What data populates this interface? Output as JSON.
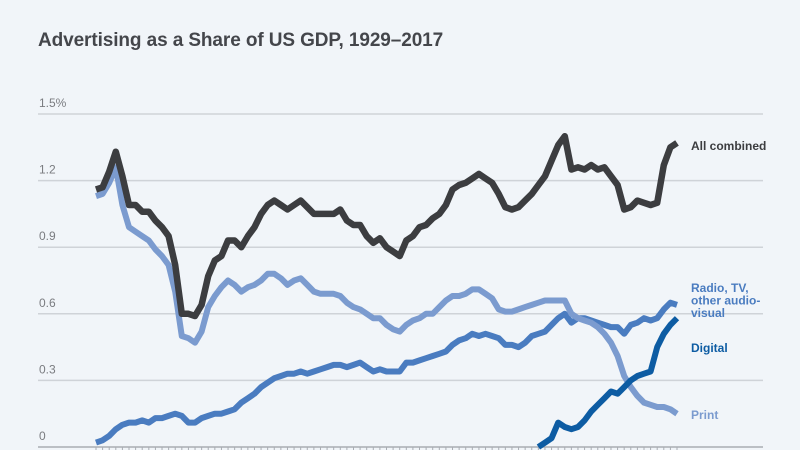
{
  "chart_data": {
    "type": "line",
    "title": "Advertising as a Share of US GDP, 1929–2017",
    "xlabel": "",
    "ylabel": "",
    "xlim": [
      1929,
      2017
    ],
    "ylim": [
      0,
      1.5
    ],
    "yticks": [
      {
        "value": 0,
        "label": "0"
      },
      {
        "value": 0.3,
        "label": "0.3"
      },
      {
        "value": 0.6,
        "label": "0.6"
      },
      {
        "value": 0.9,
        "label": "0.9"
      },
      {
        "value": 1.2,
        "label": "1.2"
      },
      {
        "value": 1.5,
        "label": "1.5%"
      }
    ],
    "grid": true,
    "legend": "direct labels at right end of lines",
    "series": [
      {
        "name": "All combined",
        "label_lines": [
          "All combined"
        ],
        "color": "#3c3d40",
        "start_year": 1929,
        "values": [
          1.16,
          1.17,
          1.24,
          1.33,
          1.22,
          1.09,
          1.09,
          1.06,
          1.06,
          1.02,
          0.99,
          0.95,
          0.82,
          0.6,
          0.6,
          0.59,
          0.64,
          0.77,
          0.84,
          0.86,
          0.93,
          0.93,
          0.9,
          0.95,
          0.99,
          1.05,
          1.09,
          1.11,
          1.09,
          1.07,
          1.09,
          1.11,
          1.08,
          1.05,
          1.05,
          1.05,
          1.05,
          1.07,
          1.02,
          1.0,
          1.0,
          0.95,
          0.92,
          0.94,
          0.9,
          0.88,
          0.86,
          0.93,
          0.95,
          0.99,
          1.0,
          1.03,
          1.05,
          1.09,
          1.16,
          1.18,
          1.19,
          1.21,
          1.23,
          1.21,
          1.19,
          1.14,
          1.08,
          1.07,
          1.08,
          1.11,
          1.14,
          1.18,
          1.22,
          1.29,
          1.36,
          1.4,
          1.25,
          1.26,
          1.25,
          1.27,
          1.25,
          1.26,
          1.22,
          1.18,
          1.07,
          1.08,
          1.11,
          1.1,
          1.09,
          1.1,
          1.27,
          1.35,
          1.37
        ]
      },
      {
        "name": "Print",
        "label_lines": [
          "Print"
        ],
        "color": "#7b9bcf",
        "start_year": 1929,
        "values": [
          1.13,
          1.14,
          1.19,
          1.26,
          1.09,
          0.99,
          0.97,
          0.95,
          0.93,
          0.89,
          0.86,
          0.82,
          0.7,
          0.5,
          0.49,
          0.47,
          0.52,
          0.63,
          0.68,
          0.72,
          0.75,
          0.73,
          0.7,
          0.72,
          0.73,
          0.75,
          0.78,
          0.78,
          0.76,
          0.73,
          0.75,
          0.76,
          0.73,
          0.7,
          0.69,
          0.69,
          0.69,
          0.68,
          0.65,
          0.63,
          0.62,
          0.6,
          0.58,
          0.58,
          0.55,
          0.53,
          0.52,
          0.55,
          0.57,
          0.58,
          0.6,
          0.6,
          0.63,
          0.66,
          0.68,
          0.68,
          0.69,
          0.71,
          0.71,
          0.69,
          0.67,
          0.62,
          0.61,
          0.61,
          0.62,
          0.63,
          0.64,
          0.65,
          0.66,
          0.66,
          0.66,
          0.66,
          0.6,
          0.58,
          0.57,
          0.56,
          0.54,
          0.51,
          0.47,
          0.41,
          0.32,
          0.27,
          0.23,
          0.2,
          0.19,
          0.18,
          0.18,
          0.17,
          0.15
        ]
      },
      {
        "name": "Radio, TV, other audio-visual",
        "label_lines": [
          "Radio, TV,",
          "other audio-",
          "visual"
        ],
        "color": "#4a7cc0",
        "start_year": 1929,
        "values": [
          0.02,
          0.03,
          0.05,
          0.08,
          0.1,
          0.11,
          0.11,
          0.12,
          0.11,
          0.13,
          0.13,
          0.14,
          0.15,
          0.14,
          0.11,
          0.11,
          0.13,
          0.14,
          0.15,
          0.15,
          0.16,
          0.17,
          0.2,
          0.22,
          0.24,
          0.27,
          0.29,
          0.31,
          0.32,
          0.33,
          0.33,
          0.34,
          0.33,
          0.34,
          0.35,
          0.36,
          0.37,
          0.37,
          0.36,
          0.37,
          0.38,
          0.36,
          0.34,
          0.35,
          0.34,
          0.34,
          0.34,
          0.38,
          0.38,
          0.39,
          0.4,
          0.41,
          0.42,
          0.43,
          0.46,
          0.48,
          0.49,
          0.51,
          0.5,
          0.51,
          0.5,
          0.49,
          0.46,
          0.46,
          0.45,
          0.47,
          0.5,
          0.51,
          0.52,
          0.55,
          0.58,
          0.6,
          0.56,
          0.58,
          0.58,
          0.57,
          0.56,
          0.55,
          0.54,
          0.54,
          0.51,
          0.55,
          0.56,
          0.58,
          0.57,
          0.58,
          0.62,
          0.65,
          0.64
        ]
      },
      {
        "name": "Digital",
        "label_lines": [
          "Digital"
        ],
        "color": "#0d5ca3",
        "start_year": 1996,
        "values": [
          0.0,
          0.02,
          0.04,
          0.11,
          0.09,
          0.08,
          0.09,
          0.12,
          0.16,
          0.19,
          0.22,
          0.25,
          0.24,
          0.27,
          0.3,
          0.32,
          0.33,
          0.34,
          0.45,
          0.51,
          0.55,
          0.58
        ]
      }
    ]
  }
}
